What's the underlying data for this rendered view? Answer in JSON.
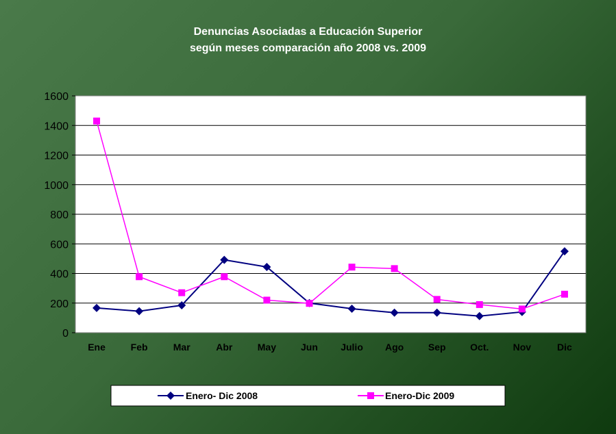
{
  "chart_data": {
    "type": "line",
    "title": [
      "Denuncias Asociadas a  Educación Superior",
      "según meses comparación año  2008  vs. 2009"
    ],
    "categories": [
      "Ene",
      "Feb",
      "Mar",
      "Abr",
      "May",
      "Jun",
      "Julio",
      "Ago",
      "Sep",
      "Oct.",
      "Nov",
      "Dic"
    ],
    "series": [
      {
        "name": "Enero- Dic 2008",
        "color": "#000080",
        "marker": "diamond",
        "values": [
          167,
          145,
          185,
          492,
          444,
          200,
          162,
          135,
          135,
          112,
          140,
          550
        ]
      },
      {
        "name": "Enero-Dic 2009",
        "color": "#ff00ff",
        "marker": "square",
        "values": [
          1430,
          378,
          270,
          378,
          220,
          198,
          443,
          433,
          225,
          190,
          160,
          260
        ]
      }
    ],
    "ylim": [
      0,
      1600
    ],
    "yticks": [
      "0",
      "200",
      "400",
      "600",
      "800",
      "1000",
      "1200",
      "1400",
      "1600"
    ],
    "grid": true,
    "legend": "bottom"
  }
}
